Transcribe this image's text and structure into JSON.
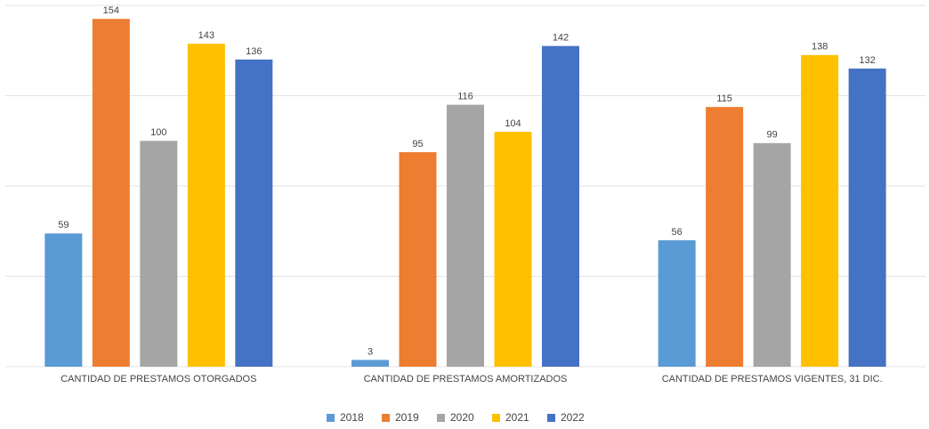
{
  "chart_data": {
    "type": "bar",
    "categories": [
      "CANTIDAD DE PRESTAMOS OTORGADOS",
      "CANTIDAD DE PRESTAMOS AMORTIZADOS",
      "CANTIDAD DE PRESTAMOS VIGENTES,  31 DIC."
    ],
    "series": [
      {
        "name": "2018",
        "color": "#5b9bd5",
        "values": [
          59,
          3,
          56
        ]
      },
      {
        "name": "2019",
        "color": "#ed7d31",
        "values": [
          154,
          95,
          115
        ]
      },
      {
        "name": "2020",
        "color": "#a5a5a5",
        "values": [
          100,
          116,
          99
        ]
      },
      {
        "name": "2021",
        "color": "#ffc000",
        "values": [
          143,
          104,
          138
        ]
      },
      {
        "name": "2022",
        "color": "#4472c4",
        "values": [
          136,
          142,
          132
        ]
      }
    ],
    "ylim": [
      0,
      160
    ],
    "yticks": [
      0,
      40,
      80,
      120,
      160
    ],
    "grid": true,
    "legend": "bottom"
  }
}
